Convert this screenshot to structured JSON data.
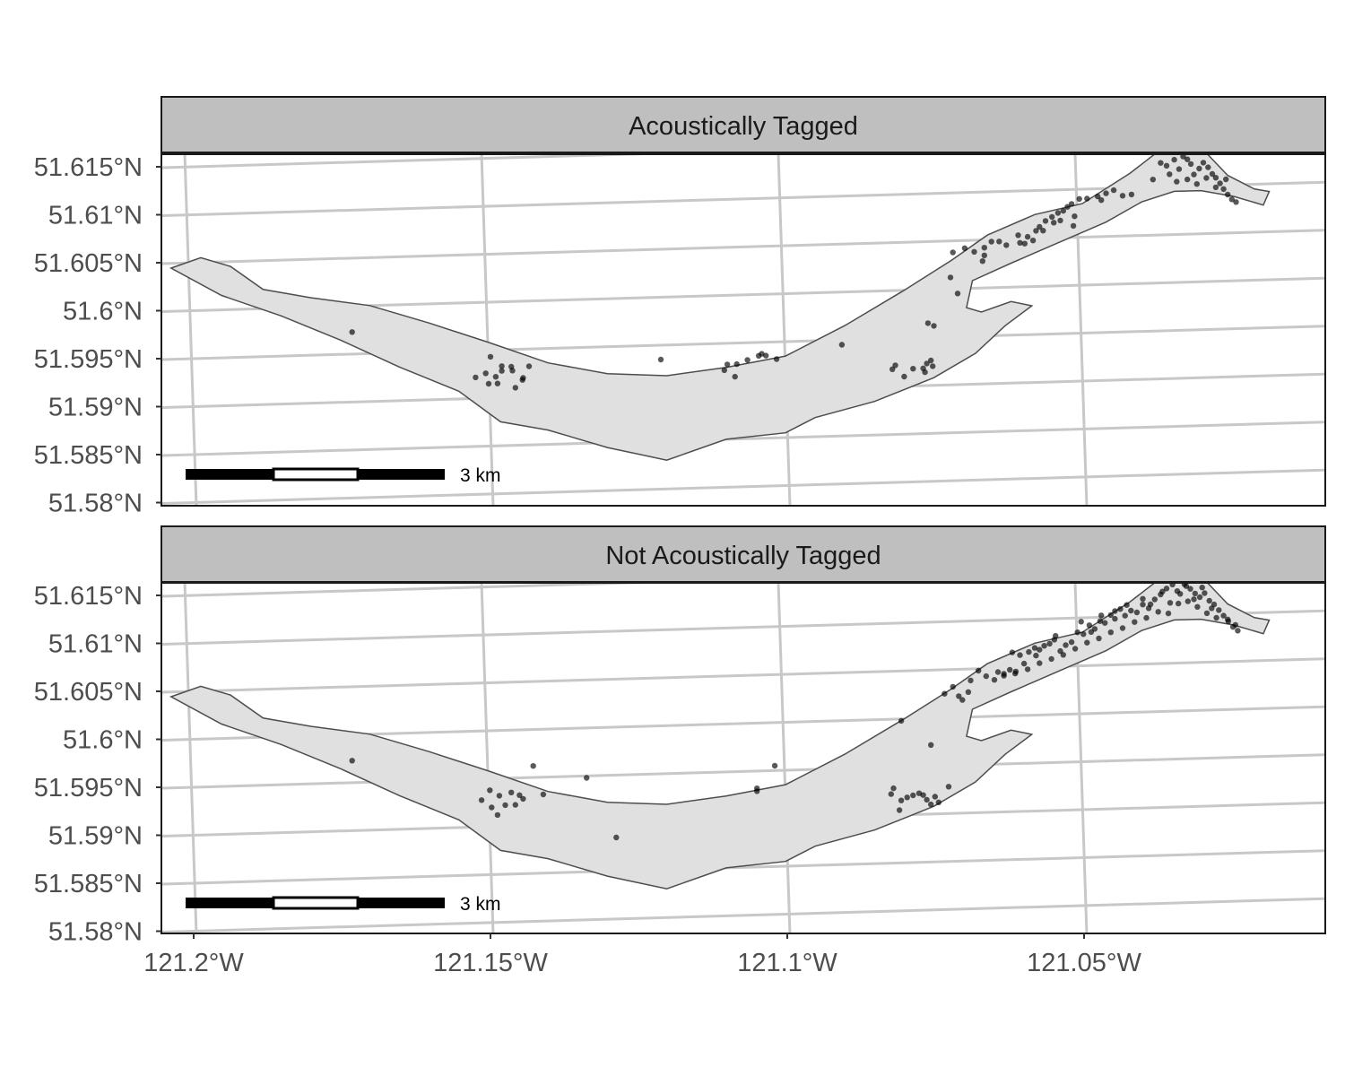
{
  "chart_data": {
    "type": "scatter",
    "title": "",
    "xlabel": "",
    "ylabel": "",
    "xlim": [
      -121.21,
      -121.01
    ],
    "ylim": [
      51.58,
      51.616
    ],
    "x_ticks": [
      {
        "value": -121.2,
        "label": "121.2°W"
      },
      {
        "value": -121.15,
        "label": "121.15°W"
      },
      {
        "value": -121.1,
        "label": "121.1°W"
      },
      {
        "value": -121.05,
        "label": "121.05°W"
      }
    ],
    "y_ticks": [
      {
        "value": 51.615,
        "label": "51.615°N"
      },
      {
        "value": 51.61,
        "label": "51.61°N"
      },
      {
        "value": 51.605,
        "label": "51.605°N"
      },
      {
        "value": 51.6,
        "label": "51.6°N"
      },
      {
        "value": 51.595,
        "label": "51.595°N"
      },
      {
        "value": 51.59,
        "label": "51.59°N"
      },
      {
        "value": 51.585,
        "label": "51.585°N"
      },
      {
        "value": 51.58,
        "label": "51.58°N"
      }
    ],
    "grid": true,
    "colors": {
      "lake_fill": "#e0e0e0",
      "lake_outline": "#4d4d4d",
      "point": "#000000",
      "strip": "#bfbfbf",
      "grid": "#c8c8c8"
    },
    "scale_bar": {
      "label": "3 km"
    },
    "lake_outline": [
      [
        -121.2035,
        51.6045
      ],
      [
        -121.1985,
        51.6055
      ],
      [
        -121.1935,
        51.6045
      ],
      [
        -121.188,
        51.602
      ],
      [
        -121.18,
        51.601
      ],
      [
        -121.17,
        51.6
      ],
      [
        -121.16,
        51.598
      ],
      [
        -121.15,
        51.5958
      ],
      [
        -121.14,
        51.5935
      ],
      [
        -121.13,
        51.5922
      ],
      [
        -121.12,
        51.5918
      ],
      [
        -121.11,
        51.5925
      ],
      [
        -121.1,
        51.5935
      ],
      [
        -121.09,
        51.5965
      ],
      [
        -121.08,
        51.6
      ],
      [
        -121.072,
        51.603
      ],
      [
        -121.066,
        51.6055
      ],
      [
        -121.058,
        51.6075
      ],
      [
        -121.05,
        51.6085
      ],
      [
        -121.042,
        51.6115
      ],
      [
        -121.0355,
        51.6145
      ],
      [
        -121.03,
        51.614
      ],
      [
        -121.0255,
        51.611
      ],
      [
        -121.021,
        51.6095
      ],
      [
        -121.0185,
        51.6092
      ],
      [
        -121.0195,
        51.6078
      ],
      [
        -121.0245,
        51.6088
      ],
      [
        -121.03,
        51.6095
      ],
      [
        -121.0345,
        51.6095
      ],
      [
        -121.04,
        51.6085
      ],
      [
        -121.046,
        51.6065
      ],
      [
        -121.054,
        51.6045
      ],
      [
        -121.062,
        51.6025
      ],
      [
        -121.0685,
        51.6008
      ],
      [
        -121.0695,
        51.598
      ],
      [
        -121.067,
        51.5975
      ],
      [
        -121.062,
        51.5985
      ],
      [
        -121.0585,
        51.598
      ],
      [
        -121.063,
        51.596
      ],
      [
        -121.068,
        51.5932
      ],
      [
        -121.075,
        51.5908
      ],
      [
        -121.085,
        51.5885
      ],
      [
        -121.095,
        51.587
      ],
      [
        -121.1,
        51.5855
      ],
      [
        -121.11,
        51.585
      ],
      [
        -121.12,
        51.583
      ],
      [
        -121.13,
        51.5845
      ],
      [
        -121.14,
        51.5865
      ],
      [
        -121.148,
        51.5875
      ],
      [
        -121.155,
        51.5908
      ],
      [
        -121.165,
        51.5935
      ],
      [
        -121.175,
        51.5965
      ],
      [
        -121.185,
        51.5992
      ],
      [
        -121.195,
        51.6015
      ],
      [
        -121.2035,
        51.6045
      ]
    ],
    "series": [
      {
        "name": "Acoustically Tagged",
        "points": [
          [
            -121.173,
            51.5973
          ],
          [
            -121.1497,
            51.5943
          ],
          [
            -121.1478,
            51.5933
          ],
          [
            -121.1505,
            51.5926
          ],
          [
            -121.1522,
            51.5922
          ],
          [
            -121.1488,
            51.5922
          ],
          [
            -121.146,
            51.5928
          ],
          [
            -121.1442,
            51.592
          ],
          [
            -121.1455,
            51.591
          ],
          [
            -121.15,
            51.5915
          ],
          [
            -121.1485,
            51.5915
          ],
          [
            -121.1432,
            51.5932
          ],
          [
            -121.1443,
            51.5918
          ],
          [
            -121.1478,
            51.5928
          ],
          [
            -121.1462,
            51.5932
          ],
          [
            -121.121,
            51.5935
          ],
          [
            -121.1098,
            51.5928
          ],
          [
            -121.1082,
            51.5928
          ],
          [
            -121.1064,
            51.5932
          ],
          [
            -121.1045,
            51.5936
          ],
          [
            -121.104,
            51.5938
          ],
          [
            -121.1033,
            51.5936
          ],
          [
            -121.1015,
            51.5932
          ],
          [
            -121.1085,
            51.5915
          ],
          [
            -121.1103,
            51.5922
          ],
          [
            -121.0905,
            51.5945
          ],
          [
            -121.082,
            51.5918
          ],
          [
            -121.08,
            51.591
          ],
          [
            -121.0785,
            51.5918
          ],
          [
            -121.0768,
            51.5918
          ],
          [
            -121.0765,
            51.5914
          ],
          [
            -121.0752,
            51.592
          ],
          [
            -121.0762,
            51.5923
          ],
          [
            -121.0755,
            51.5926
          ],
          [
            -121.0815,
            51.5922
          ],
          [
            -121.076,
            51.5965
          ],
          [
            -121.075,
            51.5962
          ],
          [
            -121.071,
            51.5995
          ],
          [
            -121.0722,
            51.6012
          ],
          [
            -121.0718,
            51.6038
          ],
          [
            -121.0698,
            51.6042
          ],
          [
            -121.0682,
            51.6038
          ],
          [
            -121.0665,
            51.6042
          ],
          [
            -121.0653,
            51.6048
          ],
          [
            -121.0665,
            51.6034
          ],
          [
            -121.0668,
            51.6028
          ],
          [
            -121.064,
            51.6048
          ],
          [
            -121.0628,
            51.6044
          ],
          [
            -121.0608,
            51.6054
          ],
          [
            -121.0605,
            51.6046
          ],
          [
            -121.0592,
            51.6052
          ],
          [
            -121.0578,
            51.6058
          ],
          [
            -121.0572,
            51.6062
          ],
          [
            -121.0562,
            51.6068
          ],
          [
            -121.0551,
            51.6072
          ],
          [
            -121.0541,
            51.6076
          ],
          [
            -121.0532,
            51.6078
          ],
          [
            -121.0525,
            51.6082
          ],
          [
            -121.0518,
            51.6085
          ],
          [
            -121.0505,
            51.609
          ],
          [
            -121.0492,
            51.609
          ],
          [
            -121.0474,
            51.6092
          ],
          [
            -121.0468,
            51.6088
          ],
          [
            -121.046,
            51.6095
          ],
          [
            -121.0447,
            51.6098
          ],
          [
            -121.0432,
            51.6092
          ],
          [
            -121.0417,
            51.6093
          ],
          [
            -121.0548,
            51.6066
          ],
          [
            -121.0537,
            51.6068
          ],
          [
            -121.0515,
            51.6062
          ],
          [
            -121.0513,
            51.6072
          ],
          [
            -121.0566,
            51.6058
          ],
          [
            -121.0583,
            51.6048
          ],
          [
            -121.0597,
            51.6045
          ],
          [
            -121.0368,
            51.6125
          ],
          [
            -121.0358,
            51.6122
          ],
          [
            -121.0353,
            51.6113
          ],
          [
            -121.0345,
            51.6128
          ],
          [
            -121.0337,
            51.6118
          ],
          [
            -121.033,
            51.6131
          ],
          [
            -121.0323,
            51.6128
          ],
          [
            -121.0317,
            51.6123
          ],
          [
            -121.0312,
            51.6112
          ],
          [
            -121.0303,
            51.6118
          ],
          [
            -121.0296,
            51.6124
          ],
          [
            -121.0288,
            51.6119
          ],
          [
            -121.0281,
            51.6112
          ],
          [
            -121.0275,
            51.6108
          ],
          [
            -121.0268,
            51.6102
          ],
          [
            -121.0262,
            51.6096
          ],
          [
            -121.0255,
            51.609
          ],
          [
            -121.0248,
            51.6085
          ],
          [
            -121.0241,
            51.6082
          ],
          [
            -121.0341,
            51.6105
          ],
          [
            -121.0323,
            51.6107
          ],
          [
            -121.0307,
            51.6102
          ],
          [
            -121.0291,
            51.6108
          ],
          [
            -121.0275,
            51.6098
          ],
          [
            -121.0258,
            51.6106
          ],
          [
            -121.0381,
            51.6108
          ]
        ]
      },
      {
        "name": "Not Acoustically Tagged",
        "points": [
          [
            -121.173,
            51.5973
          ],
          [
            -121.1425,
            51.5962
          ],
          [
            -121.1335,
            51.5948
          ],
          [
            -121.1285,
            51.5885
          ],
          [
            -121.1408,
            51.5932
          ],
          [
            -121.1498,
            51.5938
          ],
          [
            -121.1482,
            51.5932
          ],
          [
            -121.1462,
            51.5935
          ],
          [
            -121.1448,
            51.5932
          ],
          [
            -121.1512,
            51.5928
          ],
          [
            -121.1472,
            51.5922
          ],
          [
            -121.1455,
            51.5922
          ],
          [
            -121.1442,
            51.5928
          ],
          [
            -121.1485,
            51.5912
          ],
          [
            -121.1495,
            51.592
          ],
          [
            -121.1048,
            51.5932
          ],
          [
            -121.1048,
            51.5929
          ],
          [
            -121.1018,
            51.5955
          ],
          [
            -121.0822,
            51.5922
          ],
          [
            -121.0805,
            51.5915
          ],
          [
            -121.0795,
            51.5918
          ],
          [
            -121.0785,
            51.592
          ],
          [
            -121.0775,
            51.5922
          ],
          [
            -121.0768,
            51.592
          ],
          [
            -121.0762,
            51.5915
          ],
          [
            -121.0755,
            51.591
          ],
          [
            -121.0748,
            51.5918
          ],
          [
            -121.0742,
            51.5912
          ],
          [
            -121.0818,
            51.5928
          ],
          [
            -121.0725,
            51.5928
          ],
          [
            -121.0808,
            51.5905
          ],
          [
            -121.0755,
            51.5972
          ],
          [
            -121.0805,
            51.5998
          ],
          [
            -121.0732,
            51.6025
          ],
          [
            -121.0718,
            51.6032
          ],
          [
            -121.0708,
            51.6022
          ],
          [
            -121.0702,
            51.6018
          ],
          [
            -121.0688,
            51.6038
          ],
          [
            -121.0662,
            51.6042
          ],
          [
            -121.0648,
            51.6038
          ],
          [
            -121.0642,
            51.6046
          ],
          [
            -121.0632,
            51.6044
          ],
          [
            -121.0622,
            51.6048
          ],
          [
            -121.0613,
            51.6044
          ],
          [
            -121.0605,
            51.6063
          ],
          [
            -121.0598,
            51.6054
          ],
          [
            -121.059,
            51.6066
          ],
          [
            -121.058,
            51.607
          ],
          [
            -121.0572,
            51.6068
          ],
          [
            -121.0564,
            51.6072
          ],
          [
            -121.0555,
            51.6074
          ],
          [
            -121.0547,
            51.6078
          ],
          [
            -121.0537,
            51.6066
          ],
          [
            -121.0528,
            51.6072
          ],
          [
            -121.0518,
            51.6075
          ],
          [
            -121.0508,
            51.6085
          ],
          [
            -121.0498,
            51.6083
          ],
          [
            -121.0488,
            51.6092
          ],
          [
            -121.0479,
            51.6088
          ],
          [
            -121.047,
            51.6096
          ],
          [
            -121.0462,
            51.6094
          ],
          [
            -121.0452,
            51.6102
          ],
          [
            -121.0445,
            51.6098
          ],
          [
            -121.0436,
            51.6108
          ],
          [
            -121.0428,
            51.6101
          ],
          [
            -121.0418,
            51.6106
          ],
          [
            -121.0408,
            51.6104
          ],
          [
            -121.0398,
            51.6112
          ],
          [
            -121.0388,
            51.6108
          ],
          [
            -121.0378,
            51.6117
          ],
          [
            -121.0368,
            51.6122
          ],
          [
            -121.0358,
            51.6128
          ],
          [
            -121.0348,
            51.6132
          ],
          [
            -121.034,
            51.6125
          ],
          [
            -121.0332,
            51.6136
          ],
          [
            -121.0325,
            51.613
          ],
          [
            -121.0318,
            51.6127
          ],
          [
            -121.031,
            51.6122
          ],
          [
            -121.0302,
            51.6118
          ],
          [
            -121.0294,
            51.6122
          ],
          [
            -121.0286,
            51.6114
          ],
          [
            -121.0278,
            51.611
          ],
          [
            -121.027,
            51.6104
          ],
          [
            -121.0262,
            51.6098
          ],
          [
            -121.0254,
            51.6092
          ],
          [
            -121.0246,
            51.6086
          ],
          [
            -121.0238,
            51.6082
          ],
          [
            -121.0352,
            51.6113
          ],
          [
            -121.0338,
            51.6112
          ],
          [
            -121.0322,
            51.6114
          ],
          [
            -121.0306,
            51.6108
          ],
          [
            -121.029,
            51.6101
          ],
          [
            -121.0274,
            51.6096
          ],
          [
            -121.0372,
            51.6104
          ],
          [
            -121.0392,
            51.6098
          ],
          [
            -121.0412,
            51.6094
          ],
          [
            -121.0432,
            51.6088
          ],
          [
            -121.0452,
            51.6084
          ],
          [
            -121.0472,
            51.6078
          ],
          [
            -121.0492,
            51.6074
          ],
          [
            -121.0512,
            51.6068
          ],
          [
            -121.0532,
            51.6062
          ],
          [
            -121.0552,
            51.6058
          ],
          [
            -121.0572,
            51.6054
          ],
          [
            -121.0592,
            51.6048
          ],
          [
            -121.0612,
            51.6046
          ],
          [
            -121.0632,
            51.6042
          ],
          [
            -121.0618,
            51.6066
          ],
          [
            -121.0545,
            51.6082
          ],
          [
            -121.0485,
            51.6085
          ],
          [
            -121.0425,
            51.6112
          ],
          [
            -121.0398,
            51.6118
          ],
          [
            -121.0365,
            51.6125
          ],
          [
            -121.0335,
            51.6122
          ],
          [
            -121.0312,
            51.6116
          ],
          [
            -121.0282,
            51.6106
          ],
          [
            -121.0255,
            51.6094
          ],
          [
            -121.0242,
            51.6088
          ],
          [
            -121.0355,
            51.6102
          ],
          [
            -121.0385,
            51.6112
          ],
          [
            -121.0298,
            51.6128
          ],
          [
            -121.0328,
            51.6132
          ],
          [
            -121.0502,
            51.6096
          ],
          [
            -121.0468,
            51.6102
          ],
          [
            -121.0445,
            51.6106
          ],
          [
            -121.0675,
            51.6048
          ],
          [
            -121.0692,
            51.6026
          ],
          [
            -121.0578,
            51.6062
          ]
        ]
      }
    ]
  }
}
